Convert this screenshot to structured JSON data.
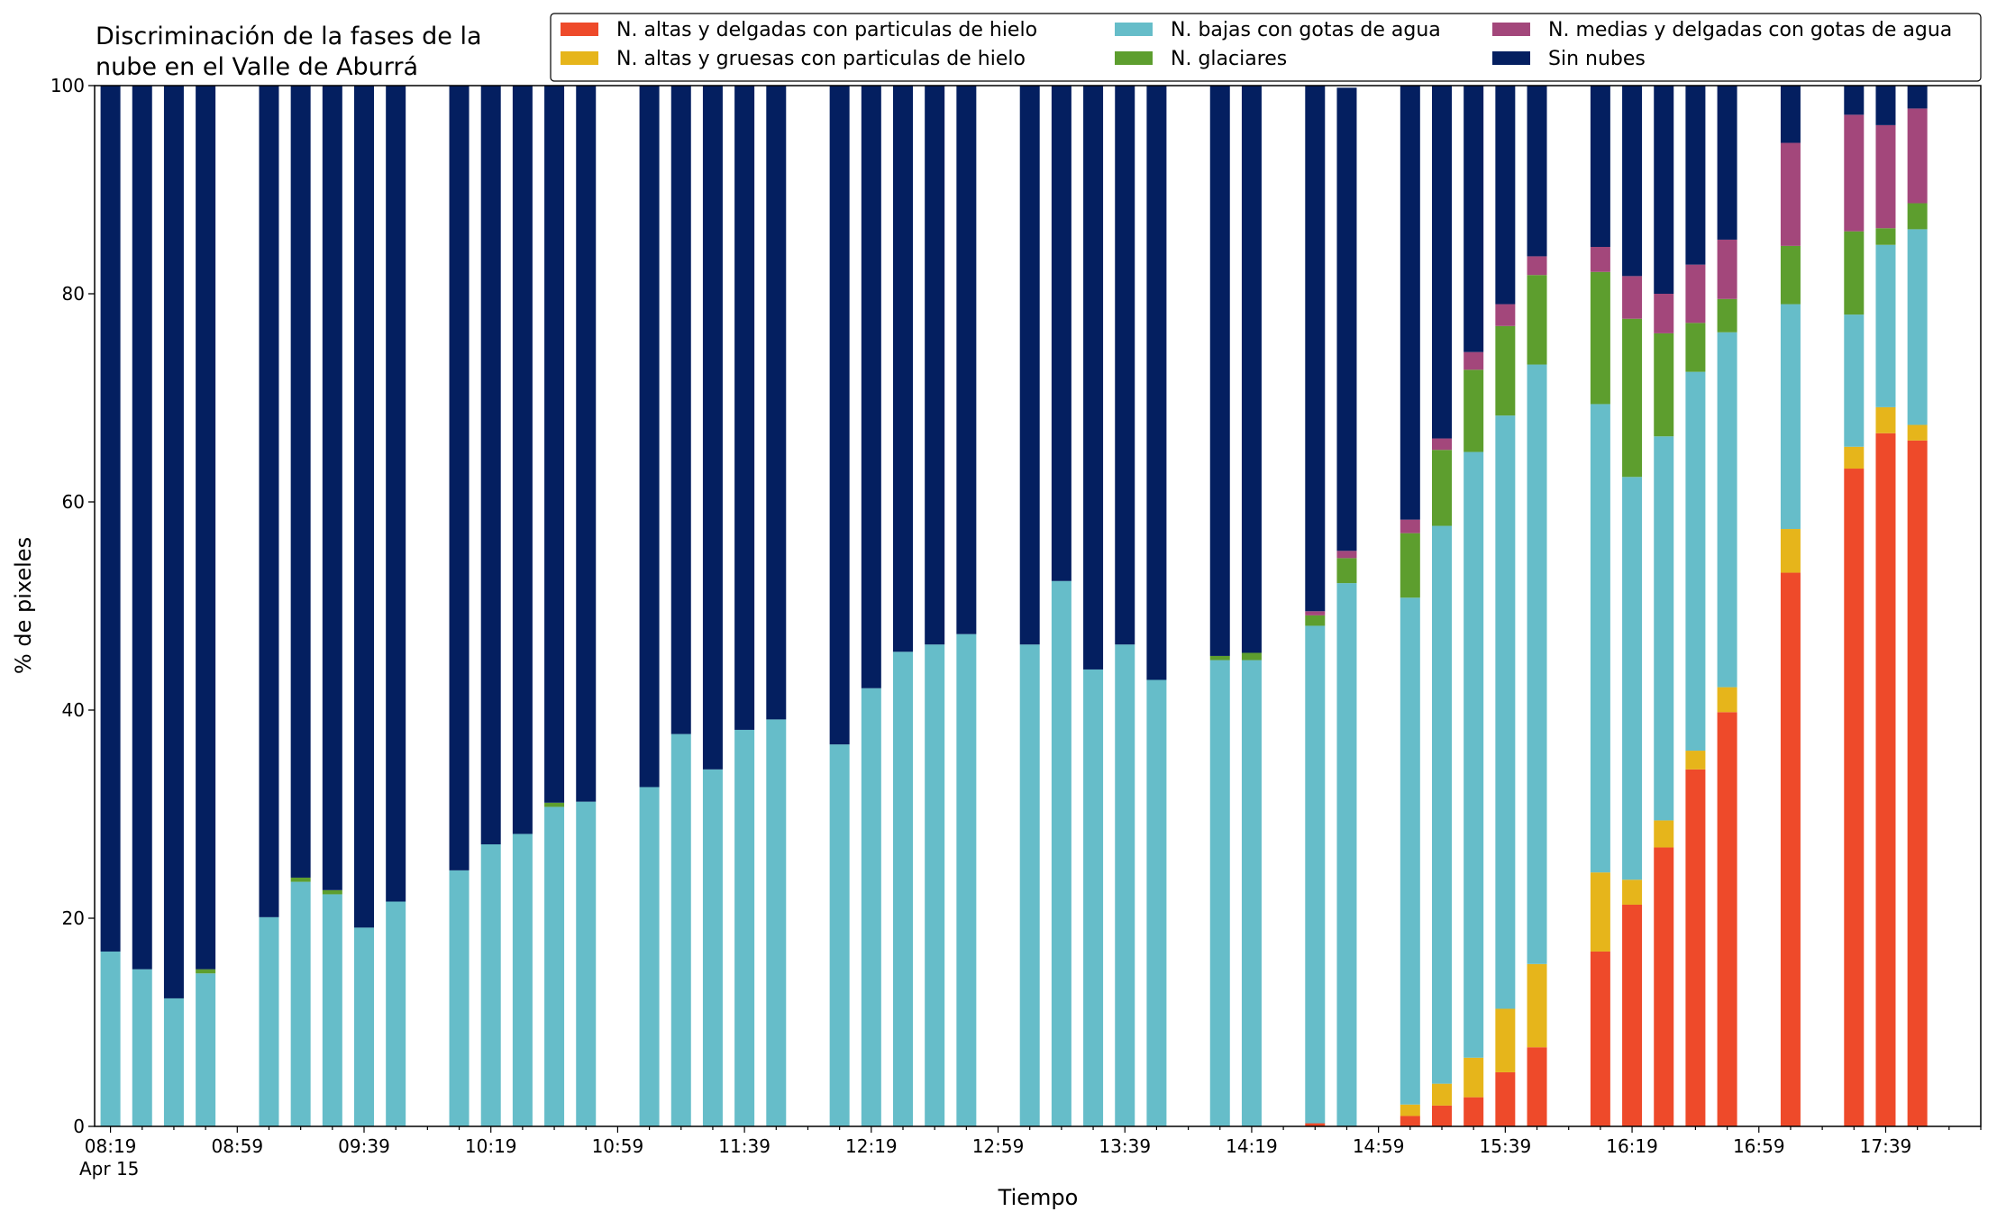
{
  "chart_data": {
    "type": "bar",
    "stacked": true,
    "title_lines": [
      "Discriminación de la fases de la",
      "nube en el Valle de Aburrá"
    ],
    "xlabel": "Tiempo",
    "ylabel": "% de pixeles",
    "ylim": [
      0,
      100
    ],
    "yticks": [
      0,
      20,
      40,
      60,
      80,
      100
    ],
    "x_range": [
      "08:14",
      "18:09"
    ],
    "xtick_labels": [
      "08:19",
      "08:59",
      "09:39",
      "10:19",
      "10:59",
      "11:39",
      "12:19",
      "12:59",
      "13:39",
      "14:19",
      "14:59",
      "15:39",
      "16:19",
      "16:59",
      "17:39"
    ],
    "x_date_label": "Apr 15",
    "grid": false,
    "legend_position": "top-right",
    "times": [
      "08:19",
      "08:29",
      "08:39",
      "08:49",
      "09:09",
      "09:19",
      "09:29",
      "09:39",
      "09:49",
      "10:09",
      "10:19",
      "10:29",
      "10:39",
      "10:49",
      "11:09",
      "11:19",
      "11:29",
      "11:39",
      "11:49",
      "12:09",
      "12:19",
      "12:29",
      "12:39",
      "12:49",
      "13:09",
      "13:19",
      "13:29",
      "13:39",
      "13:49",
      "14:09",
      "14:19",
      "14:39",
      "14:49",
      "15:09",
      "15:19",
      "15:29",
      "15:39",
      "15:49",
      "16:09",
      "16:19",
      "16:29",
      "16:39",
      "16:49",
      "17:09",
      "17:29",
      "17:39",
      "17:49"
    ],
    "series": [
      {
        "name": "N. altas y delgadas con particulas de hielo",
        "color": "#ee4a2a",
        "values": [
          0,
          0,
          0,
          0,
          0,
          0,
          0,
          0,
          0,
          0,
          0,
          0,
          0,
          0,
          0,
          0,
          0,
          0,
          0,
          0,
          0,
          0,
          0,
          0,
          0,
          0,
          0,
          0,
          0,
          0,
          0,
          0.3,
          0,
          1.0,
          2.0,
          2.8,
          5.2,
          7.6,
          16.8,
          21.3,
          26.8,
          34.3,
          39.8,
          53.2,
          63.2,
          66.6,
          65.9
        ]
      },
      {
        "name": "N. altas y gruesas con particulas de hielo",
        "color": "#e6b51b",
        "values": [
          0,
          0,
          0,
          0,
          0,
          0,
          0,
          0,
          0,
          0,
          0,
          0,
          0,
          0,
          0,
          0,
          0,
          0,
          0,
          0,
          0,
          0,
          0,
          0,
          0,
          0,
          0,
          0,
          0,
          0,
          0,
          0,
          0,
          1.1,
          2.1,
          3.8,
          6.1,
          8.0,
          7.6,
          2.4,
          2.6,
          1.8,
          2.4,
          4.2,
          2.1,
          2.5,
          1.5
        ]
      },
      {
        "name": "N. bajas con gotas de agua",
        "color": "#66bdc9",
        "values": [
          16.8,
          15.1,
          12.3,
          14.7,
          20.1,
          23.5,
          22.3,
          19.1,
          21.6,
          24.6,
          27.1,
          28.1,
          30.7,
          31.2,
          32.6,
          37.7,
          34.3,
          38.1,
          39.1,
          36.7,
          42.1,
          45.6,
          46.3,
          47.3,
          46.3,
          52.4,
          43.9,
          46.3,
          42.9,
          44.8,
          44.8,
          47.8,
          52.2,
          48.7,
          53.6,
          58.2,
          57.0,
          57.6,
          45.0,
          38.7,
          36.9,
          36.4,
          34.1,
          21.6,
          12.7,
          15.6,
          18.8
        ]
      },
      {
        "name": "N. glaciares",
        "color": "#5d9e2e",
        "values": [
          0,
          0,
          0,
          0.4,
          0,
          0.4,
          0.4,
          0,
          0,
          0,
          0,
          0,
          0.4,
          0,
          0,
          0,
          0,
          0,
          0,
          0,
          0,
          0,
          0,
          0,
          0,
          0,
          0,
          0,
          0,
          0.4,
          0.7,
          1.0,
          2.4,
          6.2,
          7.3,
          7.9,
          8.6,
          8.6,
          12.7,
          15.2,
          9.9,
          4.7,
          3.2,
          5.6,
          8.0,
          1.6,
          2.5
        ]
      },
      {
        "name": "N. medias y delgadas con gotas de agua",
        "color": "#a3477b",
        "values": [
          0,
          0,
          0,
          0,
          0,
          0,
          0,
          0,
          0,
          0,
          0,
          0,
          0,
          0,
          0,
          0,
          0,
          0,
          0,
          0,
          0,
          0,
          0,
          0,
          0,
          0,
          0,
          0,
          0,
          0,
          0,
          0.4,
          0.7,
          1.3,
          1.1,
          1.7,
          2.1,
          1.8,
          2.4,
          4.1,
          3.8,
          5.6,
          5.7,
          9.9,
          11.2,
          9.9,
          9.1
        ]
      },
      {
        "name": "Sin nubes",
        "color": "#041f60",
        "values": [
          83.2,
          84.9,
          87.7,
          84.9,
          79.9,
          76.1,
          77.3,
          80.9,
          78.4,
          75.4,
          72.9,
          71.9,
          68.9,
          68.8,
          67.4,
          62.3,
          65.7,
          61.9,
          60.9,
          63.3,
          57.9,
          54.4,
          53.7,
          52.7,
          53.7,
          47.6,
          56.1,
          53.7,
          57.1,
          54.8,
          54.5,
          50.5,
          44.5,
          41.7,
          33.9,
          25.6,
          21.0,
          16.4,
          15.5,
          18.3,
          20.0,
          17.2,
          14.8,
          5.5,
          2.8,
          3.8,
          2.2
        ]
      }
    ]
  }
}
